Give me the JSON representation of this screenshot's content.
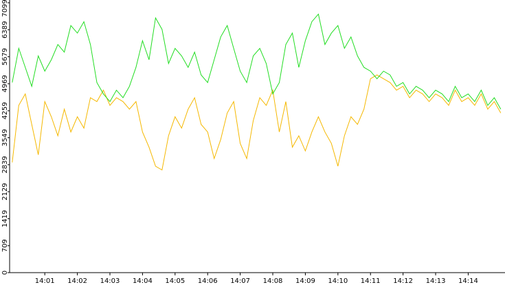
{
  "chart_data": {
    "type": "line",
    "x": [
      0.0,
      0.2,
      0.4,
      0.6,
      0.8,
      1.0,
      1.2,
      1.4,
      1.6,
      1.8,
      2.0,
      2.2,
      2.4,
      2.6,
      2.8,
      3.0,
      3.2,
      3.4,
      3.6,
      3.8,
      4.0,
      4.2,
      4.4,
      4.6,
      4.8,
      5.0,
      5.2,
      5.4,
      5.6,
      5.8,
      6.0,
      6.2,
      6.4,
      6.6,
      6.8,
      7.0,
      7.2,
      7.4,
      7.6,
      7.8,
      8.0,
      8.2,
      8.4,
      8.6,
      8.8,
      9.0,
      9.2,
      9.4,
      9.6,
      9.8,
      10.0,
      10.2,
      10.4,
      10.6,
      10.8,
      11.0,
      11.2,
      11.4,
      11.6,
      11.8,
      12.0,
      12.2,
      12.4,
      12.6,
      12.8,
      13.0,
      13.2,
      13.4,
      13.6,
      13.8,
      14.0,
      14.2,
      14.4,
      14.6,
      14.8,
      15.0
    ],
    "series": [
      {
        "color": "#f5b800",
        "values": [
          2900,
          4400,
          4700,
          3900,
          3100,
          4500,
          4100,
          3600,
          4300,
          3700,
          4100,
          3800,
          4600,
          4500,
          4800,
          4400,
          4600,
          4500,
          4300,
          4500,
          3700,
          3300,
          2800,
          2700,
          3600,
          4100,
          3800,
          4300,
          4600,
          3900,
          3700,
          3000,
          3500,
          4200,
          4500,
          3400,
          3000,
          4000,
          4600,
          4400,
          4800,
          3700,
          4500,
          3300,
          3600,
          3200,
          3700,
          4100,
          3700,
          3400,
          2800,
          3600,
          4100,
          3900,
          4300,
          5100,
          5200,
          5100,
          5000,
          4800,
          4900,
          4600,
          4800,
          4700,
          4500,
          4700,
          4600,
          4400,
          4800,
          4500,
          4600,
          4400,
          4700,
          4300,
          4500,
          4200
        ]
      },
      {
        "color": "#22dd22",
        "values": [
          5000,
          5900,
          5400,
          4900,
          5700,
          5300,
          5600,
          6000,
          5800,
          6500,
          6300,
          6600,
          6000,
          5000,
          4700,
          4500,
          4800,
          4600,
          4900,
          5400,
          6100,
          5600,
          6700,
          6400,
          5500,
          5900,
          5700,
          5400,
          5800,
          5200,
          5000,
          5600,
          6200,
          6500,
          5900,
          5300,
          5000,
          5700,
          5900,
          5500,
          4700,
          5000,
          6000,
          6300,
          5400,
          6100,
          6600,
          6800,
          6000,
          6300,
          6500,
          5900,
          6200,
          5700,
          5400,
          5300,
          5100,
          5300,
          5200,
          4900,
          5000,
          4700,
          4900,
          4800,
          4600,
          4800,
          4700,
          4500,
          4900,
          4600,
          4700,
          4500,
          4800,
          4400,
          4600,
          4300
        ]
      }
    ],
    "xlim": [
      -0.08,
      15.13
    ],
    "xticks": [
      {
        "value": 1,
        "label": "14:01"
      },
      {
        "value": 2,
        "label": "14:02"
      },
      {
        "value": 3,
        "label": "14:03"
      },
      {
        "value": 4,
        "label": "14:04"
      },
      {
        "value": 5,
        "label": "14:05"
      },
      {
        "value": 6,
        "label": "14:06"
      },
      {
        "value": 7,
        "label": "14:07"
      },
      {
        "value": 8,
        "label": "14:08"
      },
      {
        "value": 9,
        "label": "14:09"
      },
      {
        "value": 10,
        "label": "14:10"
      },
      {
        "value": 11,
        "label": "14:11"
      },
      {
        "value": 12,
        "label": "14:12"
      },
      {
        "value": 13,
        "label": "14:13"
      },
      {
        "value": 14,
        "label": "14:14"
      }
    ],
    "ylim": [
      0,
      7099
    ],
    "yticks": [
      0,
      709,
      1419,
      2129,
      2839,
      3549,
      4259,
      4969,
      5679,
      6389,
      7099
    ]
  }
}
